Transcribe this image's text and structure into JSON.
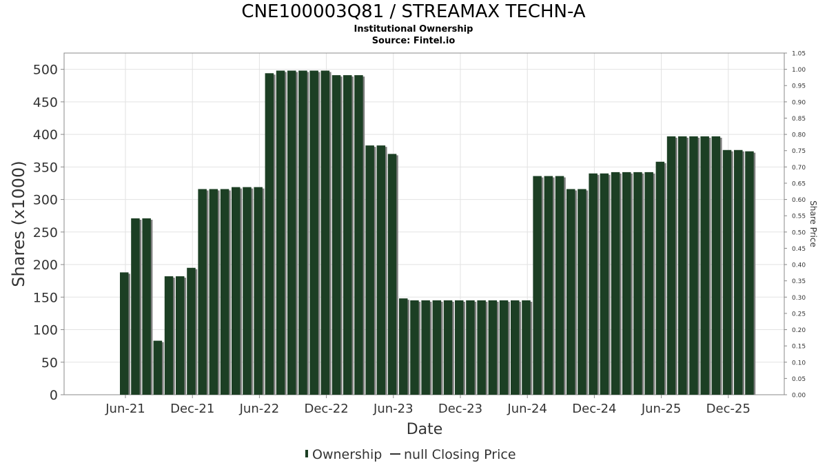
{
  "header": {
    "title": "CNE100003Q81 / STREAMAX TECHN-A",
    "subtitle": "Institutional Ownership",
    "source": "Source: Fintel.io"
  },
  "colors": {
    "bar": "#1c3f24",
    "bar_shadow": "#808080",
    "grid": "#e2e2e2",
    "plot_border": "#888888"
  },
  "chart_data": {
    "type": "bar",
    "xlabel": "Date",
    "ylabel": "Shares (x1000)",
    "y2label": "Share Price",
    "ylim": [
      0,
      525
    ],
    "y2lim": [
      0,
      1.05
    ],
    "yticks": [
      0,
      50,
      100,
      150,
      200,
      250,
      300,
      350,
      400,
      450,
      500
    ],
    "y2ticks": [
      "0.00",
      "0.05",
      "0.10",
      "0.15",
      "0.20",
      "0.25",
      "0.30",
      "0.35",
      "0.40",
      "0.45",
      "0.50",
      "0.55",
      "0.60",
      "0.65",
      "0.70",
      "0.75",
      "0.80",
      "0.85",
      "0.90",
      "0.95",
      "1.00",
      "1.05"
    ],
    "xticks": [
      "Jun-21",
      "Dec-21",
      "Jun-22",
      "Dec-22",
      "Jun-23",
      "Dec-23",
      "Jun-24",
      "Dec-24",
      "Jun-25",
      "Dec-25"
    ],
    "grid": true,
    "legend": {
      "position": "bottom",
      "items": [
        "Ownership",
        "null Closing Price"
      ]
    },
    "series": [
      {
        "name": "Ownership",
        "values": [
          188,
          271,
          271,
          83,
          182,
          182,
          195,
          316,
          316,
          316,
          319,
          319,
          319,
          494,
          498,
          498,
          498,
          498,
          498,
          491,
          491,
          491,
          383,
          383,
          370,
          148,
          145,
          145,
          145,
          145,
          145,
          145,
          145,
          145,
          145,
          145,
          145,
          336,
          336,
          336,
          316,
          316,
          340,
          340,
          342,
          342,
          342,
          342,
          358,
          397,
          397,
          397,
          397,
          397,
          376,
          376,
          374
        ]
      }
    ]
  }
}
